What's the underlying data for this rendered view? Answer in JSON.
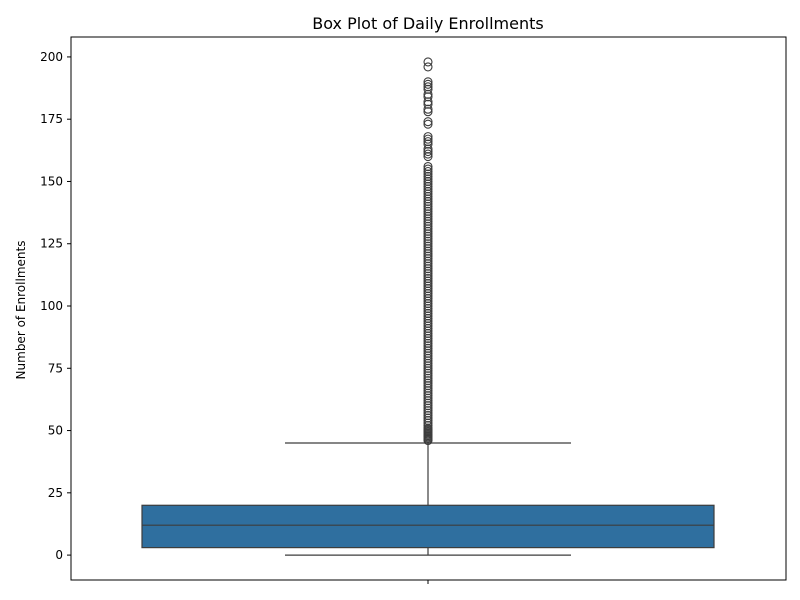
{
  "chart_data": {
    "type": "box",
    "title": "Box Plot of Daily Enrollments",
    "xlabel": "",
    "ylabel": "Number of Enrollments",
    "ylim": [
      -10,
      208
    ],
    "yticks": [
      0,
      25,
      50,
      75,
      100,
      125,
      150,
      175,
      200
    ],
    "grid": false,
    "legend": "none",
    "box_color": "#2f6f9f",
    "line_color": "#3d3d3d",
    "box": {
      "whisker_low": 0,
      "q1": 3,
      "median": 12,
      "q3": 20,
      "whisker_high": 45
    },
    "outliers": [
      46,
      46.5,
      47,
      47.5,
      48,
      48.5,
      49,
      49.5,
      50,
      50.5,
      51,
      52,
      53,
      54,
      55,
      56,
      57,
      58,
      59,
      60,
      61,
      62,
      63,
      64,
      65,
      66,
      67,
      68,
      69,
      70,
      71,
      72,
      73,
      74,
      75,
      76,
      77,
      78,
      79,
      80,
      81,
      82,
      83,
      84,
      85,
      86,
      87,
      88,
      89,
      90,
      91,
      92,
      93,
      94,
      95,
      96,
      97,
      98,
      99,
      100,
      101,
      102,
      103,
      104,
      105,
      106,
      107,
      108,
      109,
      110,
      111,
      112,
      113,
      114,
      115,
      116,
      117,
      118,
      119,
      120,
      121,
      122,
      123,
      124,
      125,
      126,
      127,
      128,
      129,
      130,
      131,
      132,
      133,
      134,
      135,
      136,
      137,
      138,
      139,
      140,
      141,
      142,
      143,
      144,
      145,
      146,
      147,
      148,
      149,
      150,
      151,
      152,
      153,
      154,
      155,
      156,
      160,
      161,
      162,
      163,
      165,
      166,
      167,
      168,
      173,
      174,
      178,
      179,
      181,
      182,
      184,
      185,
      187,
      188,
      189,
      190,
      196,
      198
    ]
  }
}
